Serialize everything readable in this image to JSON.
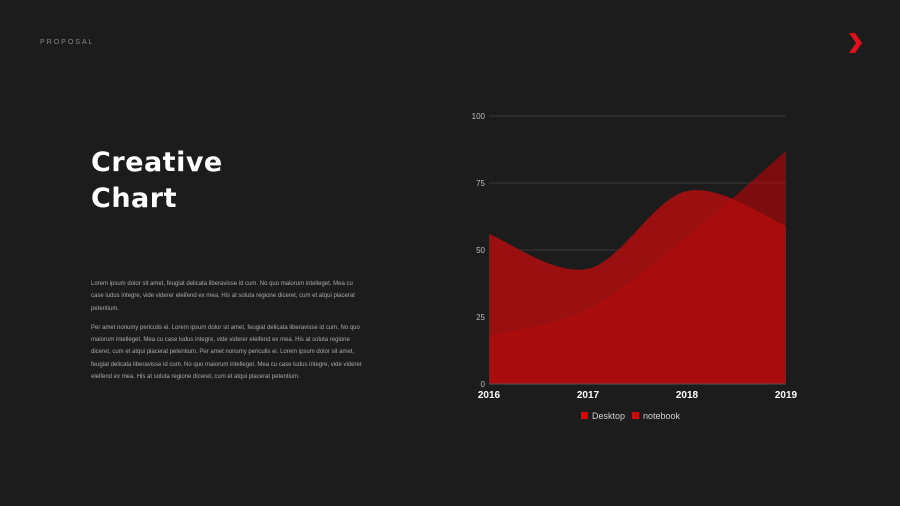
{
  "header": {
    "section_label": "PROPOSAL"
  },
  "slide": {
    "title_line1": "Creative",
    "title_line2": "Chart",
    "paragraph1": "Lorem ipsum dolor sit amet, feugiat delicata liberavisse id cum. No quo maiorum intelleget. Mea cu case ludus integre, vide viderer eleifend ex mea. His at soluta regione diceret, cum et atqui placerat petentium.",
    "paragraph2": "Per amet nonumy periculis ei. Lorem ipsum dolor sit amet, feugiat delicata liberavisse id cum. No quo maiorum intelleget. Mea cu case ludus integre, vide viderer eleifend ex mea. His at soluta regione diceret, cum et atqui placerat petentium. Per amet nonumy periculis ei. Lorem ipsum dolor sit amet, feugiat delicata liberavisse id cum. No quo maiorum intelleget. Mea cu case ludus integre, vide viderer eleifend ex mea. His at soluta regione diceret, cum et atqui placerat petentium."
  },
  "colors": {
    "background": "#1c1c1d",
    "accent": "#e0101a",
    "desktop": "#cc0000",
    "notebook": "#b00d0d"
  },
  "chart_data": {
    "type": "area",
    "categories": [
      "2016",
      "2017",
      "2018",
      "2019"
    ],
    "ylim": [
      0,
      100
    ],
    "yticks": [
      0,
      25,
      50,
      75,
      100
    ],
    "grid": true,
    "legend_position": "bottom",
    "series": [
      {
        "name": "Desktop",
        "values": [
          18,
          28,
          55,
          87
        ],
        "color": "#cc0000"
      },
      {
        "name": "notebook",
        "values": [
          56,
          43,
          72,
          59
        ],
        "color": "#b00d0d"
      }
    ]
  }
}
